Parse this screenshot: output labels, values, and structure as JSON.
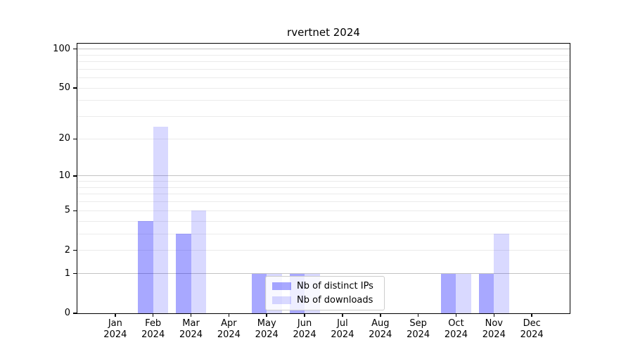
{
  "chart_data": {
    "type": "bar",
    "title": "rvertnet 2024",
    "xlabel": "",
    "ylabel": "",
    "categories": [
      "Jan",
      "Feb",
      "Mar",
      "Apr",
      "May",
      "Jun",
      "Jul",
      "Aug",
      "Sep",
      "Oct",
      "Nov",
      "Dec"
    ],
    "x_tick_year": "2024",
    "series": [
      {
        "name": "Nb of distinct IPs",
        "color": "rgba(0,0,255,0.34)",
        "values": [
          0,
          4,
          3,
          0,
          1,
          1,
          0,
          0,
          0,
          1,
          1,
          0
        ]
      },
      {
        "name": "Nb of downloads",
        "color": "rgba(0,0,255,0.15)",
        "values": [
          0,
          25,
          5,
          0,
          1,
          1,
          0,
          0,
          0,
          1,
          3,
          0
        ]
      }
    ],
    "yscale": "log10(1+x)",
    "ylim": [
      0,
      110
    ],
    "y_ticks": [
      0,
      1,
      2,
      5,
      10,
      20,
      50,
      100
    ],
    "grid_major": [
      1,
      10,
      100
    ],
    "grid_minor": [
      2,
      3,
      4,
      5,
      6,
      7,
      8,
      9,
      20,
      30,
      40,
      50,
      60,
      70,
      80,
      90
    ],
    "grid": "horizontal",
    "legend_position": "lower center",
    "frame_color": "#000000",
    "grid_minor_color": "#ebebeb",
    "grid_major_color": "#c3c3c3"
  }
}
